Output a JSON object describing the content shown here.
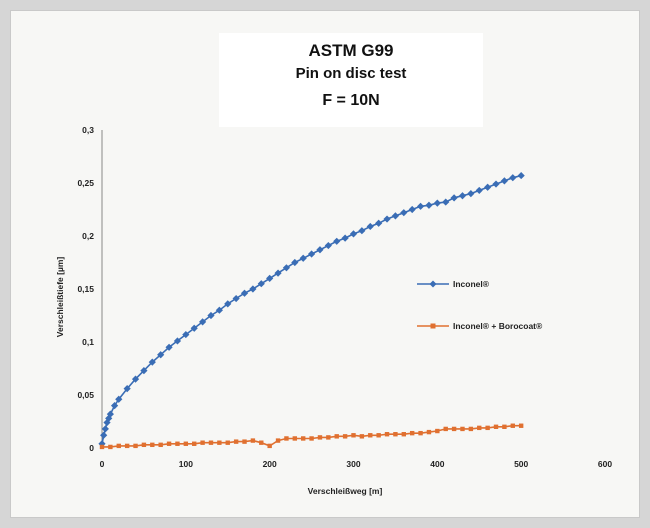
{
  "chart_data": {
    "type": "line",
    "title": "ASTM G99",
    "subtitle": "Pin on disc test",
    "condition": "F = 10N",
    "xlabel": "Verschleißweg [m]",
    "ylabel": "Verschleißtiefe [µm]",
    "xlim": [
      0,
      600
    ],
    "ylim": [
      0,
      0.3
    ],
    "x_ticks": [
      "0",
      "100",
      "200",
      "300",
      "400",
      "500",
      "600"
    ],
    "y_ticks": [
      "0",
      "0,05",
      "0,1",
      "0,15",
      "0,2",
      "0,25",
      "0,3"
    ],
    "grid": false,
    "legend_position": "right",
    "series": [
      {
        "name": "Inconel®",
        "color": "#3a6db5",
        "marker": "diamond",
        "x": [
          0,
          2,
          4,
          6,
          8,
          10,
          15,
          20,
          30,
          40,
          50,
          60,
          70,
          80,
          90,
          100,
          110,
          120,
          130,
          140,
          150,
          160,
          170,
          180,
          190,
          200,
          210,
          220,
          230,
          240,
          250,
          260,
          270,
          280,
          290,
          300,
          310,
          320,
          330,
          340,
          350,
          360,
          370,
          380,
          390,
          400,
          410,
          420,
          430,
          440,
          450,
          460,
          470,
          480,
          490,
          500
        ],
        "values": [
          0.004,
          0.012,
          0.018,
          0.024,
          0.028,
          0.032,
          0.04,
          0.046,
          0.056,
          0.065,
          0.073,
          0.081,
          0.088,
          0.095,
          0.101,
          0.107,
          0.113,
          0.119,
          0.125,
          0.13,
          0.136,
          0.141,
          0.146,
          0.15,
          0.155,
          0.16,
          0.165,
          0.17,
          0.175,
          0.179,
          0.183,
          0.187,
          0.191,
          0.195,
          0.198,
          0.202,
          0.205,
          0.209,
          0.212,
          0.216,
          0.219,
          0.222,
          0.225,
          0.228,
          0.229,
          0.231,
          0.232,
          0.236,
          0.238,
          0.24,
          0.243,
          0.246,
          0.249,
          0.252,
          0.255,
          0.257
        ]
      },
      {
        "name": "Inconel® + Borocoat®",
        "color": "#e07030",
        "marker": "square",
        "x": [
          0,
          10,
          20,
          30,
          40,
          50,
          60,
          70,
          80,
          90,
          100,
          110,
          120,
          130,
          140,
          150,
          160,
          170,
          180,
          190,
          200,
          210,
          220,
          230,
          240,
          250,
          260,
          270,
          280,
          290,
          300,
          310,
          320,
          330,
          340,
          350,
          360,
          370,
          380,
          390,
          400,
          410,
          420,
          430,
          440,
          450,
          460,
          470,
          480,
          490,
          500
        ],
        "values": [
          0.001,
          0.001,
          0.002,
          0.002,
          0.002,
          0.003,
          0.003,
          0.003,
          0.004,
          0.004,
          0.004,
          0.004,
          0.005,
          0.005,
          0.005,
          0.005,
          0.006,
          0.006,
          0.007,
          0.005,
          0.002,
          0.007,
          0.009,
          0.009,
          0.009,
          0.009,
          0.01,
          0.01,
          0.011,
          0.011,
          0.012,
          0.011,
          0.012,
          0.012,
          0.013,
          0.013,
          0.013,
          0.014,
          0.014,
          0.015,
          0.016,
          0.018,
          0.018,
          0.018,
          0.018,
          0.019,
          0.019,
          0.02,
          0.02,
          0.021,
          0.021
        ]
      }
    ]
  }
}
